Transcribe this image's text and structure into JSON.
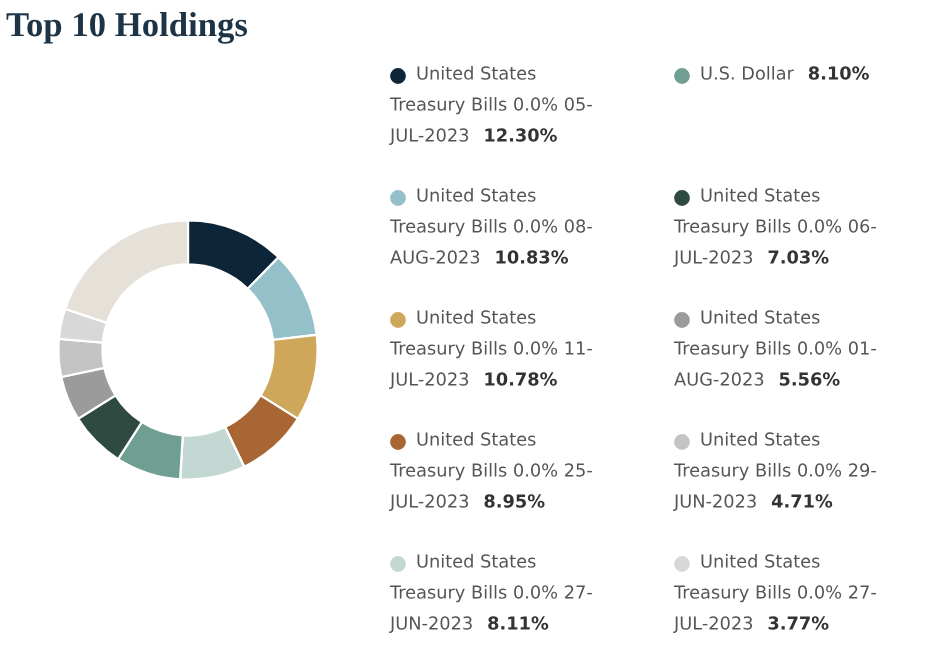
{
  "chart_data": {
    "type": "donut",
    "title": "Top 10 Holdings",
    "categories": [
      "United States\nTreasury Bills 0.0% 05-\nJUL-2023",
      "United States\nTreasury Bills 0.0% 08-\nAUG-2023",
      "United States\nTreasury Bills 0.0% 11-\nJUL-2023",
      "United States\nTreasury Bills 0.0% 25-\nJUL-2023",
      "United States\nTreasury Bills 0.0% 27-\nJUN-2023",
      "U.S. Dollar",
      "United States\nTreasury Bills 0.0% 06-\nJUL-2023",
      "United States\nTreasury Bills 0.0% 01-\nAUG-2023",
      "United States\nTreasury Bills 0.0% 29-\nJUN-2023",
      "United States\nTreasury Bills 0.0% 27-\nJUL-2023",
      null
    ],
    "values": [
      12.3,
      10.83,
      10.78,
      8.95,
      8.11,
      8.1,
      7.03,
      5.56,
      4.71,
      3.77,
      19.86
    ],
    "value_labels": [
      "12.30%",
      "10.83%",
      "10.78%",
      "8.95%",
      "8.11%",
      "8.10%",
      "7.03%",
      "5.56%",
      "4.71%",
      "3.77%",
      null
    ],
    "colors": [
      "#0c2539",
      "#94c0c9",
      "#cfa75a",
      "#a86634",
      "#c3d8d2",
      "#6f9e93",
      "#2f4a40",
      "#9b9b9b",
      "#c4c4c4",
      "#d8d8d8",
      "#e6e1d8"
    ],
    "legend": "right"
  }
}
